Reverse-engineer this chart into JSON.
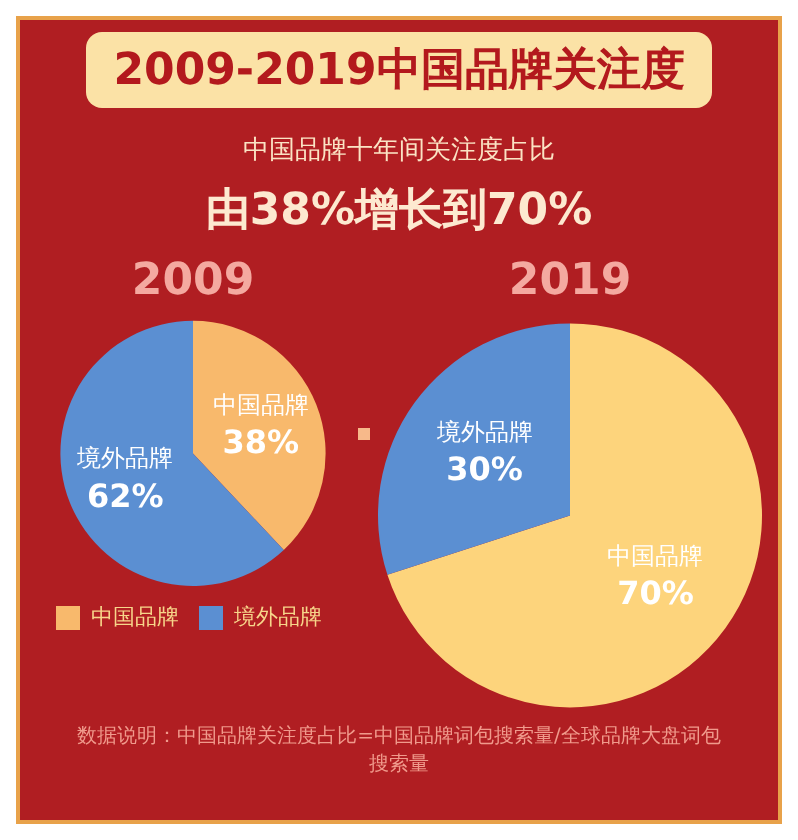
{
  "chart_data": [
    {
      "type": "other",
      "title": "2009-2019中国品牌关注度",
      "subtitle": "中国品牌十年间关注度占比",
      "annotations": [
        "由38%增长到70%"
      ]
    },
    {
      "type": "pie",
      "title": "2009",
      "categories": [
        "中国品牌",
        "境外品牌"
      ],
      "values": [
        38,
        62
      ],
      "value_labels": [
        "38%",
        "62%"
      ],
      "colors": [
        "#f8b96c",
        "#5b8fd2"
      ],
      "legend": "bottom left"
    },
    {
      "type": "pie",
      "title": "2019",
      "categories": [
        "中国品牌",
        "境外品牌"
      ],
      "values": [
        70,
        30
      ],
      "value_labels": [
        "70%",
        "30%"
      ],
      "colors": [
        "#fdd47c",
        "#5b8fd2"
      ],
      "annotations": [
        "数据说明：中国品牌关注度占比=中国品牌词包搜索量/全球品牌大盘词包搜索量"
      ]
    }
  ]
}
